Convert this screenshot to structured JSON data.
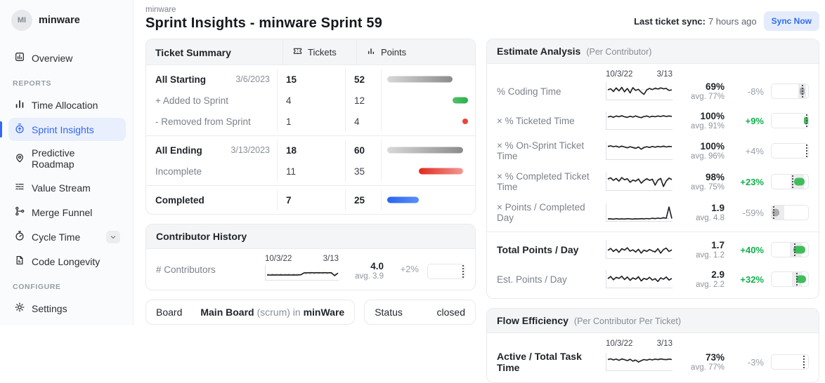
{
  "colors": {
    "accent_blue": "#3468f4",
    "positive_green": "#12b04e",
    "negative_muted": "#9aa0a7",
    "bar_gray": "#8b8b8b",
    "bar_green": "#2cae4c",
    "bar_red": "#e8453c",
    "bar_blue": "#2a63f0",
    "sync_button_bg": "#e4ecfc",
    "active_item_bg": "#e9effc"
  },
  "app": {
    "workspace_initials": "MI",
    "workspace_name": "minware"
  },
  "sidebar": {
    "reports_label": "REPORTS",
    "configure_label": "CONFIGURE",
    "items": [
      {
        "label": "Overview",
        "icon": "overview-icon"
      },
      {
        "label": "Time Allocation",
        "icon": "bar-chart-icon"
      },
      {
        "label": "Sprint Insights",
        "icon": "stopwatch-arrow-icon",
        "active": true
      },
      {
        "label": "Predictive Roadmap",
        "icon": "map-pin-icon"
      },
      {
        "label": "Value Stream",
        "icon": "stream-lines-icon"
      },
      {
        "label": "Merge Funnel",
        "icon": "merge-icon"
      },
      {
        "label": "Cycle Time",
        "icon": "stopwatch-icon",
        "expandable": true
      },
      {
        "label": "Code Longevity",
        "icon": "file-clock-icon"
      },
      {
        "label": "Settings",
        "icon": "gear-icon"
      }
    ]
  },
  "header": {
    "breadcrumb": "minware",
    "title": "Sprint Insights - minware Sprint 59",
    "sync_label": "Last ticket sync:",
    "sync_value": "7 hours ago",
    "sync_button": "Sync Now"
  },
  "ticket_summary": {
    "title": "Ticket Summary",
    "col_tickets": "Tickets",
    "col_points": "Points",
    "bar_scale_max": 64,
    "rows": [
      {
        "label": "All Starting",
        "date": "3/6/2023",
        "tickets": "15",
        "points": "52",
        "bar": {
          "start": 0,
          "end": 52,
          "color": "gray"
        }
      },
      {
        "label": "+ Added to Sprint",
        "date": "",
        "tickets": "4",
        "points": "12",
        "bar": {
          "start": 52,
          "end": 64,
          "color": "green"
        }
      },
      {
        "label": "- Removed from Sprint",
        "date": "",
        "tickets": "1",
        "points": "4",
        "bar": {
          "start": 60,
          "end": 64,
          "color": "red",
          "dot": true
        }
      },
      {
        "label": "All Ending",
        "date": "3/13/2023",
        "tickets": "18",
        "points": "60",
        "bar": {
          "start": 0,
          "end": 60,
          "color": "gray"
        }
      },
      {
        "label": "Incomplete",
        "date": "",
        "tickets": "11",
        "points": "35",
        "bar": {
          "start": 25,
          "end": 60,
          "color": "redbar"
        }
      },
      {
        "label": "Completed",
        "date": "",
        "tickets": "7",
        "points": "25",
        "bar": {
          "start": 0,
          "end": 25,
          "color": "blue"
        }
      }
    ]
  },
  "contributor_history": {
    "title": "Contributor History",
    "row_label": "# Contributors",
    "date_start": "10/3/22",
    "date_end": "3/13",
    "value": "4.0",
    "avg_label": "avg. 3.9",
    "delta": "+2%",
    "spark": {
      "points": [
        34,
        34,
        35,
        34,
        35,
        34,
        35,
        34,
        35,
        34,
        36,
        54,
        54,
        55,
        54,
        55,
        54,
        55,
        54,
        55,
        28,
        52
      ],
      "avg": 44
    },
    "gauge": {
      "line": 96
    }
  },
  "filters": {
    "board_label": "Board",
    "board_value": "Main Board",
    "board_qualifier": " (scrum) in ",
    "board_org": "minWare",
    "status_label": "Status",
    "status_value": "closed"
  },
  "estimate_analysis": {
    "title": "Estimate Analysis",
    "subtitle": "(Per Contributor)",
    "date_start": "10/3/22",
    "date_end": "3/13",
    "rows": [
      {
        "label": "% Coding Time",
        "value": "69%",
        "avg_label": "avg. 77%",
        "delta": "-8%",
        "spark": {
          "points": [
            62,
            70,
            50,
            76,
            55,
            80,
            48,
            72,
            40,
            78,
            58,
            66,
            45,
            30,
            62,
            72,
            64,
            74,
            68,
            76,
            70,
            72,
            58,
            62
          ],
          "avg": 64
        },
        "gauge": {
          "zone": [
            74,
            94
          ],
          "bar": [
            76,
            90
          ],
          "bar_color": "#a9abae",
          "line": 84
        }
      },
      {
        "label": "× % Ticketed Time",
        "value": "100%",
        "avg_label": "avg. 91%",
        "delta": "+9%",
        "spark": {
          "points": [
            78,
            84,
            76,
            86,
            80,
            88,
            80,
            76,
            84,
            78,
            86,
            78,
            74,
            82,
            86,
            78,
            84,
            80,
            86,
            82,
            88,
            82,
            86,
            83
          ],
          "avg": 82
        },
        "gauge": {
          "bar": [
            88,
            100
          ],
          "bar_color": "#3fbd5c",
          "line": 96
        }
      },
      {
        "label": "× % On-Sprint Ticket Time",
        "value": "100%",
        "avg_label": "avg. 96%",
        "delta": "+4%",
        "spark": {
          "points": [
            84,
            88,
            82,
            86,
            78,
            86,
            80,
            74,
            82,
            76,
            70,
            80,
            64,
            76,
            82,
            76,
            84,
            78,
            84,
            80,
            86,
            80,
            84,
            82
          ],
          "avg": 80
        },
        "gauge": {
          "line": 96
        }
      },
      {
        "label": "× % Completed Ticket Time",
        "value": "98%",
        "avg_label": "avg. 75%",
        "delta": "+23%",
        "spark": {
          "points": [
            72,
            80,
            62,
            76,
            56,
            82,
            66,
            74,
            48,
            64,
            56,
            72,
            42,
            60,
            74,
            62,
            70,
            28,
            64,
            76,
            18,
            58,
            78,
            68
          ],
          "avg": 64
        },
        "gauge": {
          "zone": [
            52,
            88
          ],
          "bar": [
            62,
            90
          ],
          "bar_color": "#3fbd5c",
          "line": 58
        }
      },
      {
        "label": "× Points / Completed Day",
        "value": "1.9",
        "avg_label": "avg. 4.8",
        "delta": "-59%",
        "spark": {
          "points": [
            7,
            8,
            5,
            9,
            6,
            8,
            6,
            9,
            7,
            6,
            8,
            7,
            9,
            7,
            10,
            8,
            12,
            9,
            13,
            10,
            16,
            12,
            92,
            10
          ],
          "avg": 10
        },
        "gauge": {
          "zone": [
            0,
            34
          ],
          "bar": [
            2,
            22
          ],
          "bar_color": "#a9abae",
          "line": 5
        }
      },
      {
        "label": "Total Points / Day",
        "value": "1.7",
        "avg_label": "avg. 1.2",
        "delta": "+40%",
        "spark": {
          "points": [
            48,
            62,
            40,
            56,
            34,
            60,
            50,
            66,
            42,
            52,
            36,
            56,
            28,
            50,
            40,
            54,
            44,
            36,
            60,
            28,
            54,
            64,
            40,
            52
          ],
          "avg": 48
        },
        "gauge": {
          "zone": [
            50,
            82
          ],
          "bar": [
            60,
            92
          ],
          "bar_color": "#3fbd5c",
          "line": 64
        }
      },
      {
        "label": "Est. Points / Day",
        "value": "2.9",
        "avg_label": "avg. 2.2",
        "delta": "+32%",
        "spark": {
          "points": [
            56,
            72,
            48,
            66,
            58,
            74,
            50,
            68,
            44,
            62,
            52,
            70,
            40,
            58,
            50,
            66,
            46,
            56,
            36,
            62,
            52,
            68,
            46,
            58
          ],
          "avg": 57
        },
        "gauge": {
          "zone": [
            55,
            82
          ],
          "bar": [
            68,
            94
          ],
          "bar_color": "#3fbd5c",
          "line": 70
        }
      }
    ]
  },
  "flow_efficiency": {
    "title": "Flow Efficiency",
    "subtitle": "(Per Contributor Per Ticket)",
    "date_start": "10/3/22",
    "date_end": "3/13",
    "rows": [
      {
        "label": "Active / Total Task Time",
        "value": "73%",
        "avg_label": "avg. 77%",
        "delta": "-3%",
        "spark": {
          "points": [
            70,
            75,
            67,
            73,
            64,
            74,
            69,
            62,
            72,
            58,
            66,
            52,
            62,
            70,
            65,
            72,
            67,
            73,
            69,
            74,
            71,
            69,
            73,
            70
          ],
          "avg": 68
        },
        "gauge": {
          "line": 88
        }
      }
    ]
  }
}
